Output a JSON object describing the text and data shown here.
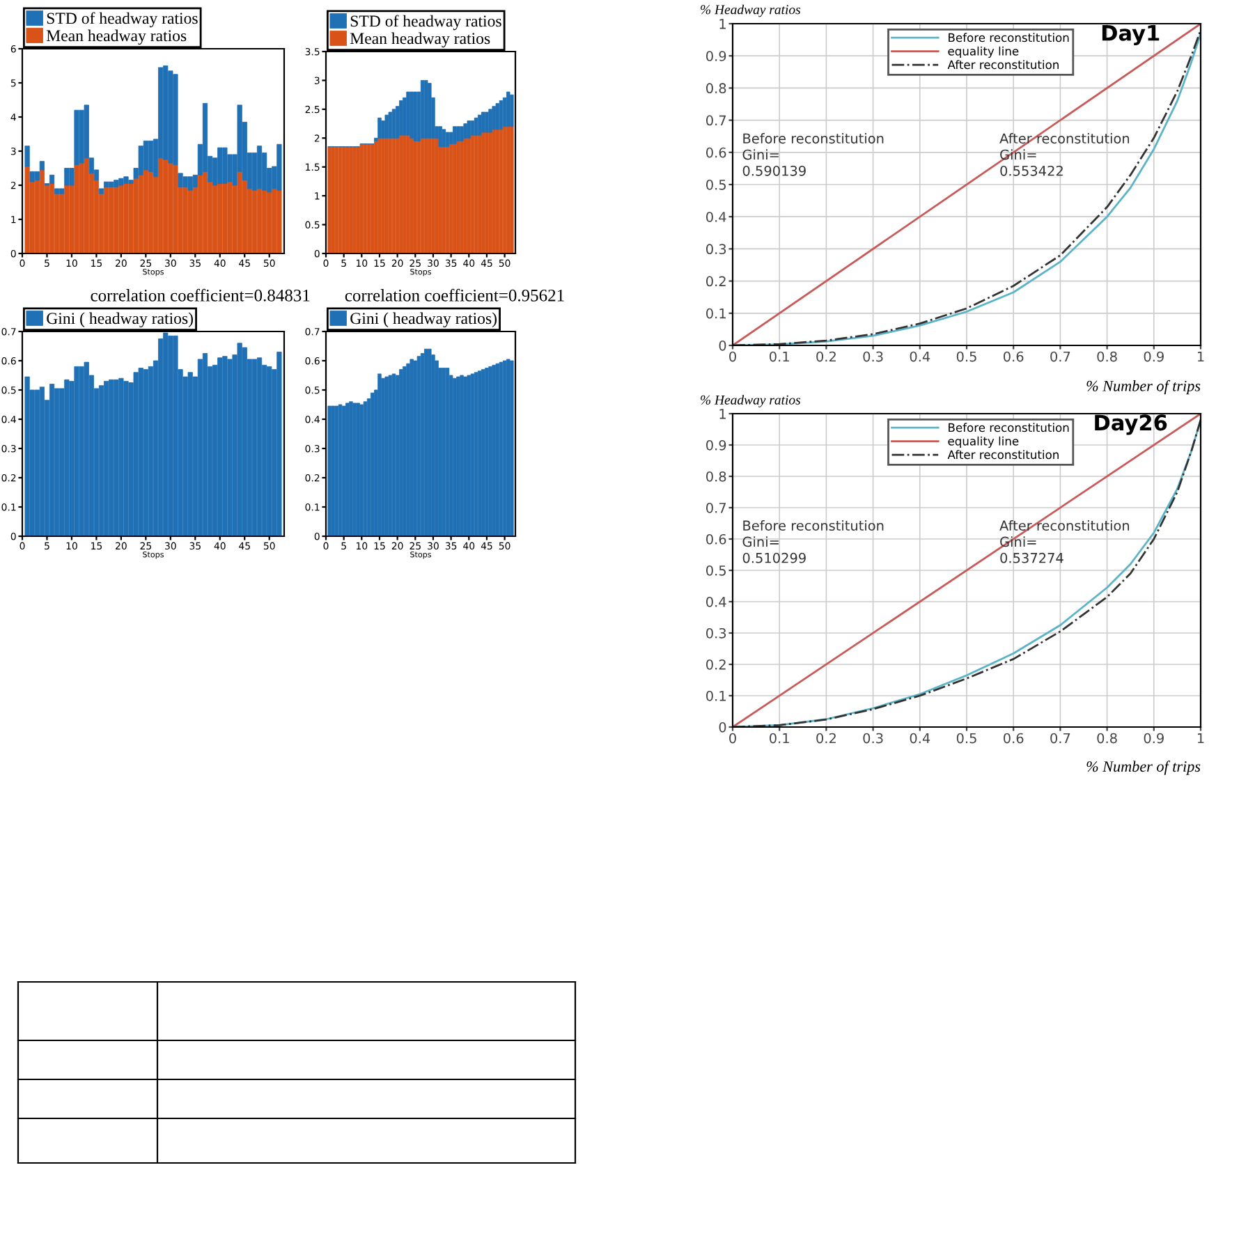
{
  "chart_data": [
    {
      "type": "bar",
      "stacked": true,
      "xlabel": "Stops",
      "legend": "top left",
      "grid": false,
      "x": [
        1,
        2,
        3,
        4,
        5,
        6,
        7,
        8,
        9,
        10,
        11,
        12,
        13,
        14,
        15,
        16,
        17,
        18,
        19,
        20,
        21,
        22,
        23,
        24,
        25,
        26,
        27,
        28,
        29,
        30,
        31,
        32,
        33,
        34,
        35,
        36,
        37,
        38,
        39,
        40,
        41,
        42,
        43,
        44,
        45,
        46,
        47,
        48,
        49,
        50,
        51,
        52
      ],
      "xlim": [
        0,
        53
      ],
      "xticks": [
        0,
        5,
        10,
        15,
        20,
        25,
        30,
        35,
        40,
        45,
        50
      ],
      "ylim": [
        0,
        6
      ],
      "yticks": [
        0,
        1,
        2,
        3,
        4,
        5,
        6
      ],
      "series": [
        {
          "name": "Mean headway ratios",
          "color": "#d95319",
          "values": [
            2.55,
            2.1,
            2.15,
            2.45,
            2.0,
            2.05,
            1.75,
            1.75,
            2.0,
            2.0,
            2.6,
            2.65,
            2.8,
            2.35,
            2.15,
            1.75,
            1.95,
            1.95,
            1.95,
            2.0,
            2.05,
            2.05,
            2.2,
            2.3,
            2.45,
            2.4,
            2.25,
            2.8,
            2.75,
            2.65,
            2.6,
            1.95,
            1.95,
            1.85,
            1.95,
            2.3,
            2.4,
            2.1,
            2.0,
            2.05,
            2.05,
            2.1,
            2.0,
            2.4,
            2.15,
            1.9,
            1.85,
            1.9,
            1.85,
            1.8,
            1.9,
            1.85
          ]
        },
        {
          "name": "STD of headway ratios",
          "color": "#1f70b5",
          "values": [
            0.6,
            0.3,
            0.25,
            0.25,
            0.05,
            0.25,
            0.15,
            0.15,
            0.5,
            0.5,
            1.6,
            1.55,
            1.55,
            0.45,
            0.3,
            0.15,
            0.15,
            0.15,
            0.2,
            0.2,
            0.2,
            0.1,
            0.3,
            0.85,
            0.85,
            0.9,
            1.1,
            2.65,
            2.75,
            2.7,
            2.65,
            0.4,
            0.3,
            0.4,
            0.35,
            0.9,
            2.0,
            0.75,
            0.8,
            1.05,
            1.05,
            0.8,
            0.9,
            1.95,
            1.7,
            1.05,
            1.1,
            1.25,
            1.1,
            0.7,
            0.65,
            1.35
          ]
        }
      ]
    },
    {
      "type": "bar",
      "stacked": true,
      "xlabel": "Stops",
      "legend": "top left",
      "grid": false,
      "x": [
        1,
        2,
        3,
        4,
        5,
        6,
        7,
        8,
        9,
        10,
        11,
        12,
        13,
        14,
        15,
        16,
        17,
        18,
        19,
        20,
        21,
        22,
        23,
        24,
        25,
        26,
        27,
        28,
        29,
        30,
        31,
        32,
        33,
        34,
        35,
        36,
        37,
        38,
        39,
        40,
        41,
        42,
        43,
        44,
        45,
        46,
        47,
        48,
        49,
        50,
        51,
        52
      ],
      "xlim": [
        0,
        53
      ],
      "xticks": [
        0,
        5,
        10,
        15,
        20,
        25,
        30,
        35,
        40,
        45,
        50
      ],
      "ylim": [
        0,
        3.5
      ],
      "yticks": [
        0,
        0.5,
        1,
        1.5,
        2,
        2.5,
        3,
        3.5
      ],
      "series": [
        {
          "name": "Mean headway ratios",
          "color": "#d95319",
          "values": [
            1.85,
            1.85,
            1.85,
            1.85,
            1.85,
            1.85,
            1.85,
            1.85,
            1.85,
            1.9,
            1.9,
            1.9,
            1.9,
            1.95,
            2.0,
            2.0,
            2.0,
            2.0,
            2.0,
            2.0,
            2.05,
            2.05,
            2.05,
            2.0,
            1.95,
            1.95,
            2.0,
            2.0,
            2.0,
            2.0,
            2.0,
            1.85,
            1.85,
            1.85,
            1.9,
            1.9,
            1.95,
            1.95,
            2.0,
            2.0,
            2.05,
            2.05,
            2.05,
            2.1,
            2.1,
            2.1,
            2.15,
            2.15,
            2.15,
            2.2,
            2.2,
            2.2
          ]
        },
        {
          "name": "STD of headway ratios",
          "color": "#1f70b5",
          "values": [
            0,
            0,
            0,
            0,
            0,
            0,
            0,
            0,
            0,
            0,
            0,
            0,
            0,
            0.05,
            0.35,
            0.3,
            0.4,
            0.45,
            0.5,
            0.55,
            0.6,
            0.65,
            0.75,
            0.8,
            0.85,
            0.85,
            1.0,
            1.0,
            0.95,
            0.7,
            0.2,
            0.35,
            0.3,
            0.25,
            0.2,
            0.3,
            0.25,
            0.25,
            0.25,
            0.3,
            0.25,
            0.3,
            0.35,
            0.35,
            0.35,
            0.4,
            0.4,
            0.45,
            0.5,
            0.5,
            0.6,
            0.55
          ]
        }
      ]
    },
    {
      "type": "bar",
      "xlabel": "Stops",
      "legend": "top left",
      "grid": false,
      "annotations": [
        "correlation coefficient=0.84831"
      ],
      "x": [
        1,
        2,
        3,
        4,
        5,
        6,
        7,
        8,
        9,
        10,
        11,
        12,
        13,
        14,
        15,
        16,
        17,
        18,
        19,
        20,
        21,
        22,
        23,
        24,
        25,
        26,
        27,
        28,
        29,
        30,
        31,
        32,
        33,
        34,
        35,
        36,
        37,
        38,
        39,
        40,
        41,
        42,
        43,
        44,
        45,
        46,
        47,
        48,
        49,
        50,
        51,
        52
      ],
      "xlim": [
        0,
        53
      ],
      "xticks": [
        0,
        5,
        10,
        15,
        20,
        25,
        30,
        35,
        40,
        45,
        50
      ],
      "ylim": [
        0,
        0.7
      ],
      "yticks": [
        0,
        0.1,
        0.2,
        0.3,
        0.4,
        0.5,
        0.6,
        0.7
      ],
      "series": [
        {
          "name": "Gini ( headway ratios)",
          "color": "#1f70b5",
          "values": [
            0.545,
            0.5,
            0.5,
            0.51,
            0.465,
            0.52,
            0.505,
            0.505,
            0.535,
            0.53,
            0.58,
            0.58,
            0.595,
            0.55,
            0.505,
            0.515,
            0.53,
            0.535,
            0.535,
            0.54,
            0.53,
            0.525,
            0.56,
            0.575,
            0.57,
            0.58,
            0.6,
            0.675,
            0.695,
            0.685,
            0.685,
            0.57,
            0.545,
            0.56,
            0.545,
            0.605,
            0.625,
            0.58,
            0.585,
            0.61,
            0.615,
            0.605,
            0.62,
            0.66,
            0.645,
            0.605,
            0.605,
            0.61,
            0.585,
            0.58,
            0.57,
            0.63
          ]
        }
      ]
    },
    {
      "type": "bar",
      "xlabel": "Stops",
      "legend": "top left",
      "grid": false,
      "annotations": [
        "correlation coefficient=0.95621"
      ],
      "x": [
        1,
        2,
        3,
        4,
        5,
        6,
        7,
        8,
        9,
        10,
        11,
        12,
        13,
        14,
        15,
        16,
        17,
        18,
        19,
        20,
        21,
        22,
        23,
        24,
        25,
        26,
        27,
        28,
        29,
        30,
        31,
        32,
        33,
        34,
        35,
        36,
        37,
        38,
        39,
        40,
        41,
        42,
        43,
        44,
        45,
        46,
        47,
        48,
        49,
        50,
        51,
        52
      ],
      "xlim": [
        0,
        53
      ],
      "xticks": [
        0,
        5,
        10,
        15,
        20,
        25,
        30,
        35,
        40,
        45,
        50
      ],
      "ylim": [
        0,
        0.7
      ],
      "yticks": [
        0,
        0.1,
        0.2,
        0.3,
        0.4,
        0.5,
        0.6,
        0.7
      ],
      "series": [
        {
          "name": "Gini ( headway ratios)",
          "color": "#1f70b5",
          "values": [
            0.445,
            0.445,
            0.445,
            0.45,
            0.445,
            0.455,
            0.46,
            0.455,
            0.455,
            0.45,
            0.46,
            0.47,
            0.49,
            0.5,
            0.555,
            0.54,
            0.545,
            0.55,
            0.555,
            0.55,
            0.57,
            0.58,
            0.59,
            0.605,
            0.6,
            0.615,
            0.625,
            0.64,
            0.64,
            0.62,
            0.6,
            0.575,
            0.575,
            0.575,
            0.55,
            0.54,
            0.545,
            0.55,
            0.545,
            0.55,
            0.555,
            0.56,
            0.565,
            0.57,
            0.575,
            0.58,
            0.585,
            0.59,
            0.595,
            0.6,
            0.605,
            0.6
          ]
        }
      ]
    },
    {
      "type": "line",
      "title": "Day1",
      "xlabel": "% Number of trips",
      "ylabel": "% Headway ratios",
      "legend": "top",
      "grid": true,
      "xlim": [
        0,
        1
      ],
      "xticks": [
        0,
        0.1,
        0.2,
        0.3,
        0.4,
        0.5,
        0.6,
        0.7,
        0.8,
        0.9,
        1
      ],
      "ylim": [
        0,
        1
      ],
      "yticks": [
        0,
        0.1,
        0.2,
        0.3,
        0.4,
        0.5,
        0.6,
        0.7,
        0.8,
        0.9,
        1
      ],
      "annotations": [
        "Before reconstitution\nGini=\n0.590139",
        "After reconstitution\nGini=\n0.553422"
      ],
      "series": [
        {
          "name": "Before reconstitution",
          "color": "#5ab4c8",
          "line_style": "solid",
          "x": [
            0,
            0.1,
            0.2,
            0.3,
            0.4,
            0.5,
            0.6,
            0.7,
            0.8,
            0.85,
            0.9,
            0.95,
            0.98,
            1
          ],
          "values": [
            0,
            0.003,
            0.012,
            0.03,
            0.062,
            0.105,
            0.165,
            0.26,
            0.4,
            0.49,
            0.61,
            0.76,
            0.88,
            0.97
          ]
        },
        {
          "name": "equality line",
          "color": "#c85a5a",
          "line_style": "solid",
          "x": [
            0,
            1
          ],
          "values": [
            0,
            1
          ]
        },
        {
          "name": "After reconstitution",
          "color": "#333333",
          "line_style": "dashdot",
          "x": [
            0,
            0.1,
            0.2,
            0.3,
            0.4,
            0.5,
            0.6,
            0.7,
            0.8,
            0.85,
            0.9,
            0.95,
            0.98,
            1
          ],
          "values": [
            0,
            0.004,
            0.015,
            0.035,
            0.068,
            0.115,
            0.185,
            0.28,
            0.43,
            0.53,
            0.645,
            0.79,
            0.9,
            0.98
          ]
        }
      ]
    },
    {
      "type": "line",
      "title": "Day26",
      "xlabel": "% Number of trips",
      "ylabel": "% Headway ratios",
      "legend": "top",
      "grid": true,
      "xlim": [
        0,
        1
      ],
      "xticks": [
        0,
        0.1,
        0.2,
        0.3,
        0.4,
        0.5,
        0.6,
        0.7,
        0.8,
        0.9,
        1
      ],
      "ylim": [
        0,
        1
      ],
      "yticks": [
        0,
        0.1,
        0.2,
        0.3,
        0.4,
        0.5,
        0.6,
        0.7,
        0.8,
        0.9,
        1
      ],
      "annotations": [
        "Before reconstitution\nGini=\n0.510299",
        "After reconstitution\nGini=\n0.537274"
      ],
      "series": [
        {
          "name": "Before reconstitution",
          "color": "#5ab4c8",
          "line_style": "solid",
          "x": [
            0,
            0.1,
            0.2,
            0.3,
            0.4,
            0.5,
            0.6,
            0.7,
            0.8,
            0.85,
            0.9,
            0.95,
            0.98,
            1
          ],
          "values": [
            0,
            0.006,
            0.025,
            0.06,
            0.105,
            0.165,
            0.235,
            0.325,
            0.445,
            0.52,
            0.62,
            0.76,
            0.88,
            0.98
          ]
        },
        {
          "name": "equality line",
          "color": "#c85a5a",
          "line_style": "solid",
          "x": [
            0,
            1
          ],
          "values": [
            0,
            1
          ]
        },
        {
          "name": "After reconstitution",
          "color": "#333333",
          "line_style": "dashdot",
          "x": [
            0,
            0.1,
            0.2,
            0.3,
            0.4,
            0.5,
            0.6,
            0.7,
            0.8,
            0.85,
            0.9,
            0.95,
            0.98,
            1
          ],
          "values": [
            0,
            0.006,
            0.024,
            0.057,
            0.1,
            0.155,
            0.217,
            0.305,
            0.415,
            0.49,
            0.6,
            0.75,
            0.88,
            0.98
          ]
        }
      ]
    }
  ]
}
